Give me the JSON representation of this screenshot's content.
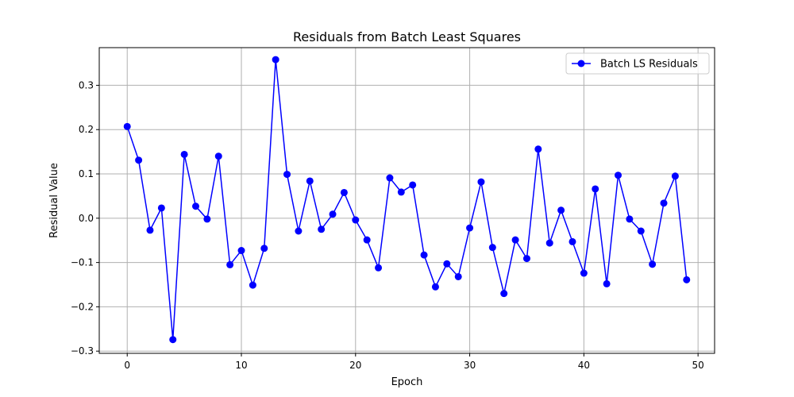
{
  "chart_data": {
    "type": "line",
    "title": "Residuals from Batch Least Squares",
    "xlabel": "Epoch",
    "ylabel": "Residual Value",
    "xlim": [
      -2.45,
      51.45
    ],
    "ylim": [
      -0.305,
      0.385
    ],
    "xticks": [
      0,
      10,
      20,
      30,
      40,
      50
    ],
    "yticks": [
      -0.3,
      -0.2,
      -0.1,
      0.0,
      0.1,
      0.2,
      0.3
    ],
    "xtick_labels": [
      "0",
      "10",
      "20",
      "30",
      "40",
      "50"
    ],
    "ytick_labels": [
      "−0.3",
      "−0.2",
      "−0.1",
      "0.0",
      "0.1",
      "0.2",
      "0.3"
    ],
    "grid": true,
    "legend_position": "top-right",
    "series": [
      {
        "name": "Batch LS Residuals",
        "color": "#0000ff",
        "marker": "circle",
        "x": [
          0,
          1,
          2,
          3,
          4,
          5,
          6,
          7,
          8,
          9,
          10,
          11,
          12,
          13,
          14,
          15,
          16,
          17,
          18,
          19,
          20,
          21,
          22,
          23,
          24,
          25,
          26,
          27,
          28,
          29,
          30,
          31,
          32,
          33,
          34,
          35,
          36,
          37,
          38,
          39,
          40,
          41,
          42,
          43,
          44,
          45,
          46,
          47,
          48,
          49
        ],
        "values": [
          0.207,
          0.131,
          -0.027,
          0.023,
          -0.274,
          0.144,
          0.027,
          -0.002,
          0.14,
          -0.105,
          -0.073,
          -0.151,
          -0.068,
          0.358,
          0.099,
          -0.029,
          0.084,
          -0.025,
          0.009,
          0.058,
          -0.004,
          -0.049,
          -0.112,
          0.091,
          0.059,
          0.075,
          -0.083,
          -0.155,
          -0.103,
          -0.132,
          -0.022,
          0.082,
          -0.066,
          -0.17,
          -0.049,
          -0.091,
          0.156,
          -0.056,
          0.018,
          -0.053,
          -0.124,
          0.066,
          -0.148,
          0.097,
          -0.002,
          -0.029,
          -0.104,
          0.034,
          0.095,
          -0.139
        ]
      }
    ]
  },
  "colors": {
    "grid": "#b0b0b0",
    "axes": "#000000",
    "series": "#0000ff"
  }
}
